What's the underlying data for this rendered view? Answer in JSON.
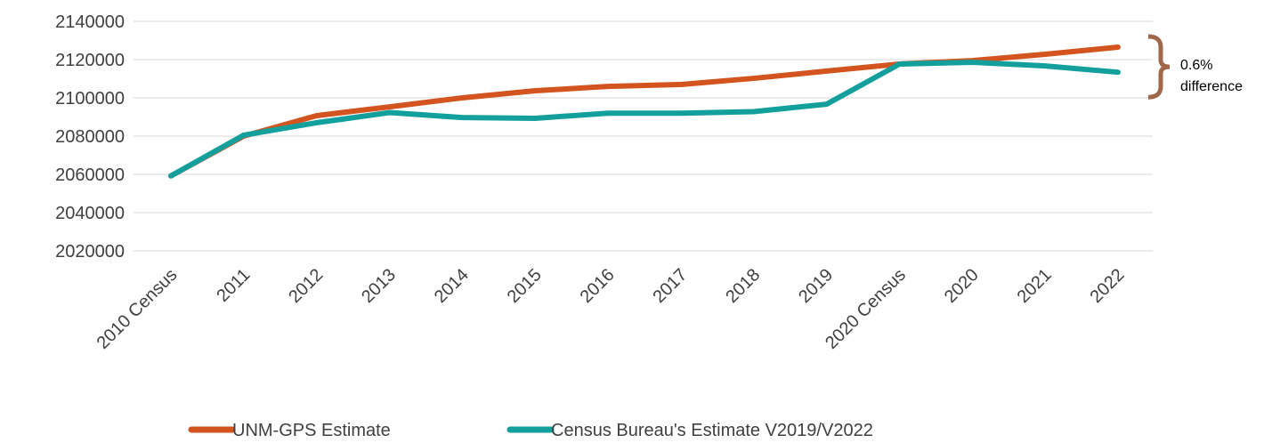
{
  "chart_data": {
    "type": "line",
    "categories": [
      "2010 Census",
      "2011",
      "2012",
      "2013",
      "2014",
      "2015",
      "2016",
      "2017",
      "2018",
      "2019",
      "2020 Census",
      "2020",
      "2021",
      "2022"
    ],
    "series": [
      {
        "name": "UNM-GPS Estimate",
        "color": "#d4541f",
        "values": [
          2059200,
          2080000,
          2090700,
          2095300,
          2100000,
          2103700,
          2106000,
          2107000,
          2110200,
          2114000,
          2117700,
          2119500,
          2122800,
          2126500
        ]
      },
      {
        "name": "Census Bureau's Estimate V2019/V2022",
        "color": "#13a09c",
        "values": [
          2059200,
          2080500,
          2087000,
          2092300,
          2089700,
          2089300,
          2092000,
          2092000,
          2092800,
          2096700,
          2117700,
          2118600,
          2116700,
          2113400
        ]
      }
    ],
    "ylim": [
      2020000,
      2140000
    ],
    "yticks": [
      2020000,
      2040000,
      2060000,
      2080000,
      2100000,
      2120000,
      2140000
    ],
    "grid": true,
    "annotation": "0.6% difference",
    "legend": "bottom"
  }
}
